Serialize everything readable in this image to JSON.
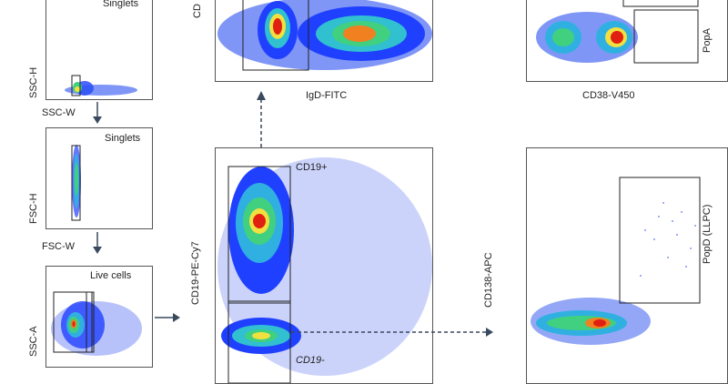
{
  "panels": {
    "singlets_1": {
      "title": "Singlets",
      "xlabel": "SSC-W",
      "ylabel": "SSC-H"
    },
    "singlets_2": {
      "title": "Singlets",
      "xlabel": "FSC-W",
      "ylabel": "FSC-H"
    },
    "live": {
      "title": "Live cells",
      "ylabel": "SSC-A"
    },
    "igd": {
      "xlabel": "IgD-FITC",
      "ylabel": "CD"
    },
    "cd38": {
      "xlabel": "CD38-V450",
      "gate": "PopA"
    },
    "cd19": {
      "ylabel": "CD19-PE-Cy7",
      "gate_pos": "CD19+",
      "gate_neg": "CD19-"
    },
    "cd138": {
      "ylabel": "CD138-APC",
      "gate": "PopD (LLPC)"
    }
  },
  "colors": {
    "axis": "#555555",
    "arrow": "#3a4a5e",
    "hot": "#e02010",
    "mid": "#20c040",
    "cold": "#1030e0"
  }
}
